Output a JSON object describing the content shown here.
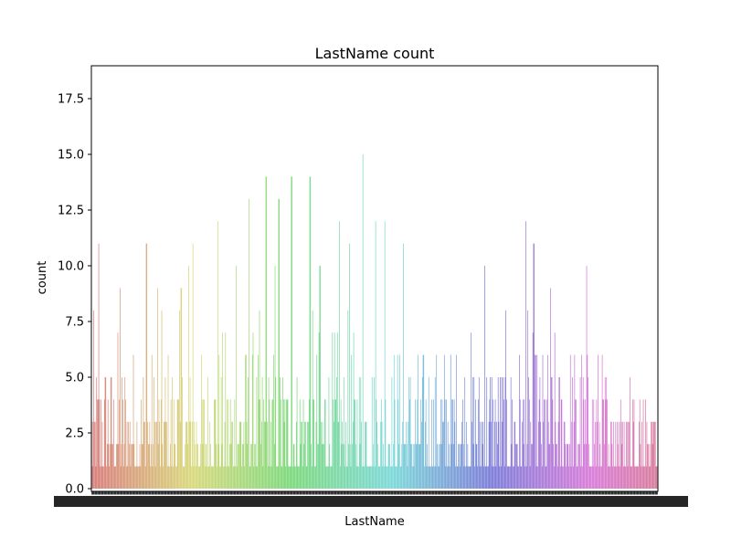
{
  "chart_data": {
    "type": "bar",
    "title": "LastName count",
    "xlabel": "LastName",
    "ylabel": "count",
    "ylim": [
      0,
      18.9
    ],
    "yticks": [
      "0.0",
      "2.5",
      "5.0",
      "7.5",
      "10.0",
      "12.5",
      "15.0",
      "17.5"
    ],
    "ytick_values": [
      0,
      2.5,
      5,
      7.5,
      10,
      12.5,
      15,
      17.5
    ],
    "grid": false,
    "legend": "none",
    "bar_count": 800,
    "hue_start": 0,
    "hue_range": 340,
    "peaks": [
      {
        "x": 108,
        "v": 11
      },
      {
        "x": 131,
        "v": 9
      },
      {
        "x": 160,
        "v": 11
      },
      {
        "x": 172,
        "v": 9
      },
      {
        "x": 198,
        "v": 9
      },
      {
        "x": 206,
        "v": 10
      },
      {
        "x": 211,
        "v": 11
      },
      {
        "x": 238,
        "v": 12
      },
      {
        "x": 258,
        "v": 10
      },
      {
        "x": 272,
        "v": 13
      },
      {
        "x": 291,
        "v": 14
      },
      {
        "x": 301,
        "v": 10
      },
      {
        "x": 305,
        "v": 13
      },
      {
        "x": 319,
        "v": 14
      },
      {
        "x": 339,
        "v": 14
      },
      {
        "x": 350,
        "v": 10
      },
      {
        "x": 371,
        "v": 12
      },
      {
        "x": 382,
        "v": 11
      },
      {
        "x": 397,
        "v": 15
      },
      {
        "x": 411,
        "v": 12
      },
      {
        "x": 421,
        "v": 12
      },
      {
        "x": 441,
        "v": 11
      },
      {
        "x": 530,
        "v": 10
      },
      {
        "x": 575,
        "v": 12
      },
      {
        "x": 584,
        "v": 11
      },
      {
        "x": 602,
        "v": 9
      },
      {
        "x": 642,
        "v": 10
      }
    ],
    "colors": {
      "background": "#ffffff",
      "axes": "#000000"
    }
  }
}
